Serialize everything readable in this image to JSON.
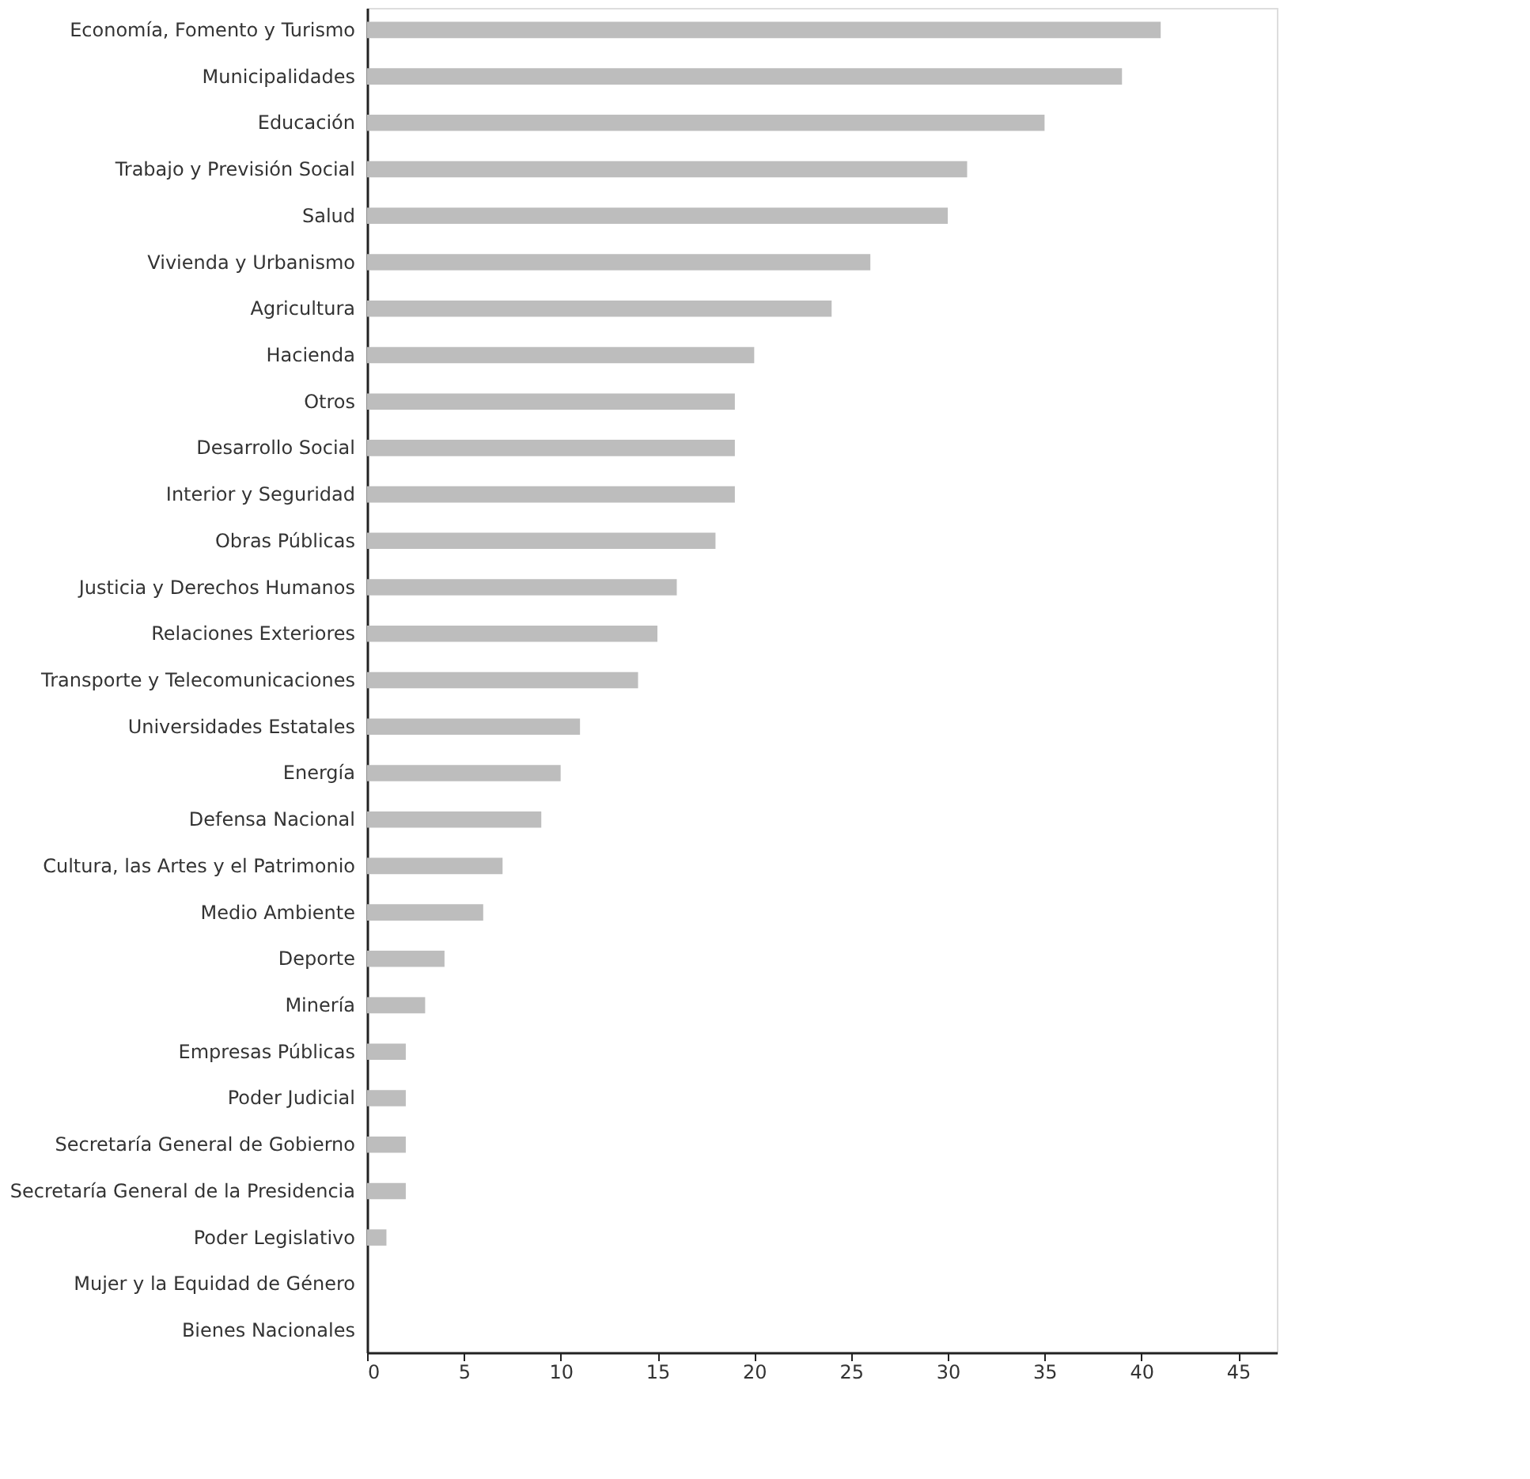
{
  "chart_data": {
    "type": "bar",
    "orientation": "horizontal",
    "categories": [
      "Economía, Fomento y Turismo",
      "Municipalidades",
      "Educación",
      "Trabajo y Previsión Social",
      "Salud",
      "Vivienda y Urbanismo",
      "Agricultura",
      "Hacienda",
      "Otros",
      "Desarrollo Social",
      "Interior y Seguridad",
      "Obras Públicas",
      "Justicia y Derechos Humanos",
      "Relaciones Exteriores",
      "Transporte y Telecomunicaciones",
      "Universidades Estatales",
      "Energía",
      "Defensa Nacional",
      "Cultura, las Artes y el Patrimonio",
      "Medio Ambiente",
      "Deporte",
      "Minería",
      "Empresas Públicas",
      "Poder Judicial",
      "Secretaría General de Gobierno",
      "Secretaría General de la Presidencia",
      "Poder Legislativo",
      "Mujer y la Equidad de Género",
      "Bienes Nacionales"
    ],
    "values": [
      41,
      39,
      35,
      31,
      30,
      26,
      24,
      20,
      19,
      19,
      19,
      18,
      16,
      15,
      14,
      11,
      10,
      9,
      7,
      6,
      4,
      3,
      2,
      2,
      2,
      2,
      1,
      0,
      0
    ],
    "color": "#bdbdbd",
    "xlim": [
      0,
      47
    ],
    "xticks": [
      0,
      5,
      10,
      15,
      20,
      25,
      30,
      35,
      40,
      45
    ],
    "grid": false
  }
}
